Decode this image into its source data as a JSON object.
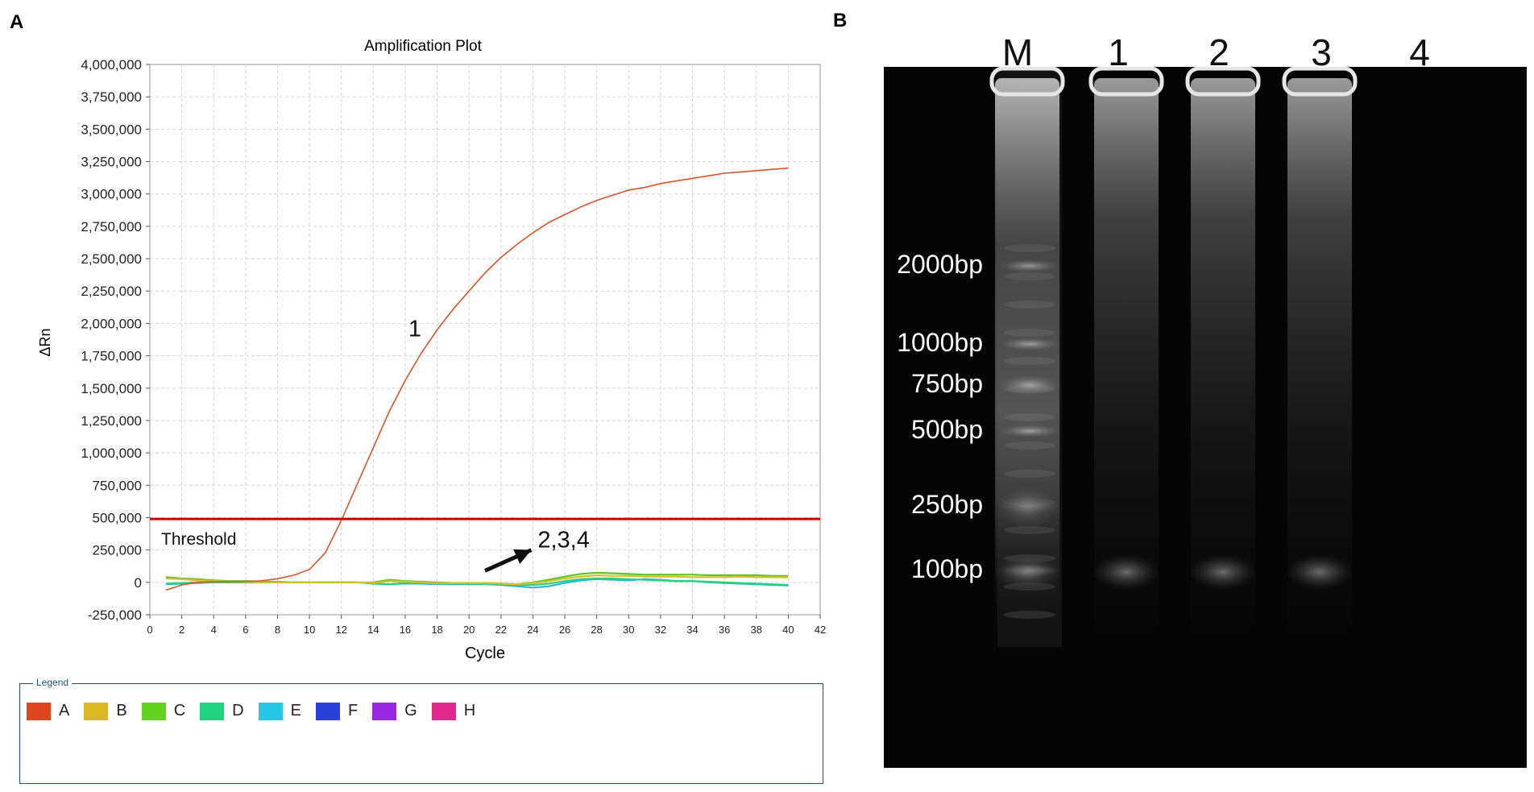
{
  "panels": {
    "a_label": "A",
    "b_label": "B"
  },
  "chart_data": {
    "type": "line",
    "title": "Amplification Plot",
    "xlabel": "Cycle",
    "ylabel": "ΔRn",
    "xlim": [
      0,
      42
    ],
    "ylim": [
      -250000,
      4000000
    ],
    "x_ticks": [
      0,
      2,
      4,
      6,
      8,
      10,
      12,
      14,
      16,
      18,
      20,
      22,
      24,
      26,
      28,
      30,
      32,
      34,
      36,
      38,
      40,
      42
    ],
    "y_ticks": [
      -250000,
      0,
      250000,
      500000,
      750000,
      1000000,
      1250000,
      1500000,
      1750000,
      2000000,
      2250000,
      2500000,
      2750000,
      3000000,
      3250000,
      3500000,
      3750000,
      4000000
    ],
    "y_tick_labels": [
      "-250,000",
      "0",
      "250,000",
      "500,000",
      "750,000",
      "1,000,000",
      "1,250,000",
      "1,500,000",
      "1,750,000",
      "2,000,000",
      "2,250,000",
      "2,500,000",
      "2,750,000",
      "3,000,000",
      "3,250,000",
      "3,500,000",
      "3,750,000",
      "4,000,000"
    ],
    "grid": true,
    "threshold": {
      "value": 490000,
      "label": "Threshold",
      "color": "#cc0000"
    },
    "annotations": [
      {
        "text": "1",
        "x": 16.2,
        "y": 1900000
      },
      {
        "text": "2,3,4",
        "x": 24.3,
        "y": 270000
      }
    ],
    "arrow": {
      "from": [
        21,
        90000
      ],
      "to": [
        23.9,
        250000
      ]
    },
    "series": [
      {
        "name": "A",
        "color": "#d9542b",
        "x": [
          1,
          2,
          3,
          4,
          5,
          6,
          7,
          8,
          9,
          10,
          11,
          12,
          13,
          14,
          15,
          16,
          17,
          18,
          19,
          20,
          21,
          22,
          23,
          24,
          25,
          26,
          27,
          28,
          29,
          30,
          31,
          32,
          33,
          34,
          35,
          36,
          37,
          38,
          39,
          40
        ],
        "values": [
          -60000,
          -20000,
          0,
          5000,
          5000,
          8000,
          12000,
          28000,
          55000,
          100000,
          230000,
          480000,
          760000,
          1040000,
          1320000,
          1560000,
          1770000,
          1950000,
          2110000,
          2250000,
          2390000,
          2510000,
          2610000,
          2700000,
          2780000,
          2840000,
          2900000,
          2950000,
          2990000,
          3030000,
          3050000,
          3080000,
          3100000,
          3120000,
          3140000,
          3160000,
          3170000,
          3180000,
          3190000,
          3200000
        ]
      },
      {
        "name": "B",
        "color": "#d4c02a",
        "x": [
          1,
          2,
          3,
          4,
          5,
          6,
          7,
          8,
          9,
          10,
          11,
          12,
          13,
          14,
          15,
          16,
          17,
          18,
          19,
          20,
          21,
          22,
          23,
          24,
          25,
          26,
          27,
          28,
          29,
          30,
          31,
          32,
          33,
          34,
          35,
          36,
          37,
          38,
          39,
          40
        ],
        "values": [
          30000,
          25000,
          15000,
          10000,
          5000,
          5000,
          0,
          0,
          0,
          0,
          0,
          0,
          0,
          -5000,
          10000,
          5000,
          0,
          -5000,
          -5000,
          -5000,
          -5000,
          -10000,
          -15000,
          -5000,
          10000,
          30000,
          45000,
          55000,
          50000,
          50000,
          45000,
          45000,
          45000,
          40000,
          40000,
          40000,
          45000,
          40000,
          40000,
          40000
        ]
      },
      {
        "name": "C",
        "color": "#5cc52a",
        "x": [
          1,
          2,
          3,
          4,
          5,
          6,
          7,
          8,
          9,
          10,
          11,
          12,
          13,
          14,
          15,
          16,
          17,
          18,
          19,
          20,
          21,
          22,
          23,
          24,
          25,
          26,
          27,
          28,
          29,
          30,
          31,
          32,
          33,
          34,
          35,
          36,
          37,
          38,
          39,
          40
        ],
        "values": [
          40000,
          30000,
          25000,
          15000,
          10000,
          10000,
          5000,
          5000,
          0,
          0,
          0,
          0,
          0,
          0,
          20000,
          10000,
          5000,
          0,
          -5000,
          -5000,
          -5000,
          -10000,
          -15000,
          0,
          20000,
          45000,
          65000,
          75000,
          70000,
          65000,
          60000,
          60000,
          60000,
          60000,
          55000,
          55000,
          55000,
          55000,
          50000,
          50000
        ]
      },
      {
        "name": "D",
        "color": "#2ad07c",
        "x": [
          1,
          2,
          3,
          4,
          5,
          6,
          7,
          8,
          9,
          10,
          11,
          12,
          13,
          14,
          15,
          16,
          17,
          18,
          19,
          20,
          21,
          22,
          23,
          24,
          25,
          26,
          27,
          28,
          29,
          30,
          31,
          32,
          33,
          34,
          35,
          36,
          37,
          38,
          39,
          40
        ],
        "values": [
          -10000,
          -5000,
          0,
          0,
          0,
          0,
          0,
          0,
          0,
          0,
          0,
          0,
          0,
          -10000,
          -15000,
          -5000,
          -5000,
          -10000,
          -10000,
          -10000,
          -10000,
          -15000,
          -20000,
          -20000,
          -10000,
          10000,
          25000,
          30000,
          30000,
          25000,
          20000,
          15000,
          10000,
          10000,
          5000,
          0,
          -5000,
          -10000,
          -15000,
          -20000
        ]
      },
      {
        "name": "E",
        "color": "#2ab8d8",
        "x": [
          1,
          2,
          3,
          4,
          5,
          6,
          7,
          8,
          9,
          10,
          11,
          12,
          13,
          14,
          15,
          16,
          17,
          18,
          19,
          20,
          21,
          22,
          23,
          24,
          25,
          26,
          27,
          28,
          29,
          30,
          31,
          32,
          33,
          34,
          35,
          36,
          37,
          38,
          39,
          40
        ],
        "values": [
          -15000,
          -10000,
          -5000,
          0,
          0,
          0,
          0,
          0,
          0,
          0,
          0,
          0,
          0,
          -10000,
          -15000,
          -10000,
          -10000,
          -15000,
          -15000,
          -15000,
          -15000,
          -20000,
          -30000,
          -40000,
          -30000,
          -5000,
          15000,
          25000,
          20000,
          15000,
          25000,
          20000,
          10000,
          10000,
          0,
          -5000,
          -10000,
          -15000,
          -20000,
          -25000
        ]
      }
    ]
  },
  "legend": {
    "title": "Legend",
    "items": [
      {
        "label": "A",
        "color": "#e0451f"
      },
      {
        "label": "B",
        "color": "#d9b821"
      },
      {
        "label": "C",
        "color": "#62d321"
      },
      {
        "label": "D",
        "color": "#1fd47e"
      },
      {
        "label": "E",
        "color": "#25c7e6"
      },
      {
        "label": "F",
        "color": "#2a3fd9"
      },
      {
        "label": "G",
        "color": "#9a28e0"
      },
      {
        "label": "H",
        "color": "#e2288f"
      }
    ]
  },
  "gel": {
    "lane_labels": [
      "M",
      "1",
      "2",
      "3",
      "4"
    ],
    "ladder_labels": [
      "2000bp",
      "1000bp",
      "750bp",
      "500bp",
      "250bp",
      "100bp"
    ],
    "ladder_bp": [
      2000,
      1000,
      750,
      500,
      250,
      100
    ]
  }
}
